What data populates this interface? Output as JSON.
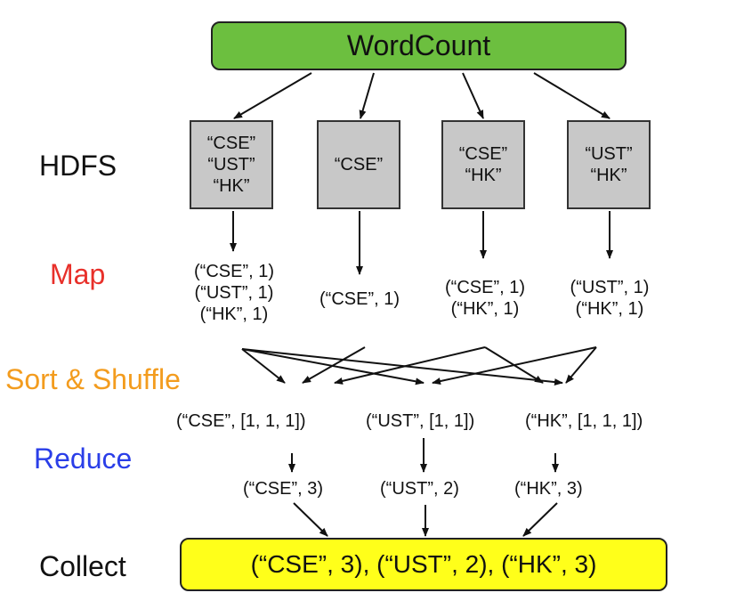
{
  "colors": {
    "map": "#e8302a",
    "sort_shuffle": "#f39c1e",
    "reduce": "#2a3ee8",
    "wordcount_fill": "#6cbf3f",
    "collect_fill": "#ffff1a",
    "hdfs_fill": "#c8c8c8"
  },
  "top": {
    "title": "WordCount"
  },
  "stages": {
    "hdfs": "HDFS",
    "map": "Map",
    "sort_shuffle": "Sort & Shuffle",
    "reduce": "Reduce",
    "collect": "Collect"
  },
  "hdfs_blocks": [
    {
      "lines": [
        "“CSE”",
        "“UST”",
        "“HK”"
      ]
    },
    {
      "lines": [
        "“CSE”"
      ]
    },
    {
      "lines": [
        "“CSE”",
        "“HK”"
      ]
    },
    {
      "lines": [
        "“UST”",
        "“HK”"
      ]
    }
  ],
  "map_outputs": [
    {
      "lines": [
        "(“CSE”, 1)",
        "(“UST”, 1)",
        "(“HK”, 1)"
      ]
    },
    {
      "lines": [
        "(“CSE”, 1)"
      ]
    },
    {
      "lines": [
        "(“CSE”, 1)",
        "(“HK”, 1)"
      ]
    },
    {
      "lines": [
        "(“UST”, 1)",
        "(“HK”, 1)"
      ]
    }
  ],
  "shuffle_outputs": [
    "(“CSE”, [1, 1, 1])",
    "(“UST”, [1, 1])",
    "(“HK”, [1, 1, 1])"
  ],
  "reduce_outputs": [
    "(“CSE”, 3)",
    "(“UST”, 2)",
    "(“HK”, 3)"
  ],
  "collect": {
    "text": "(“CSE”, 3), (“UST”, 2), (“HK”, 3)"
  }
}
